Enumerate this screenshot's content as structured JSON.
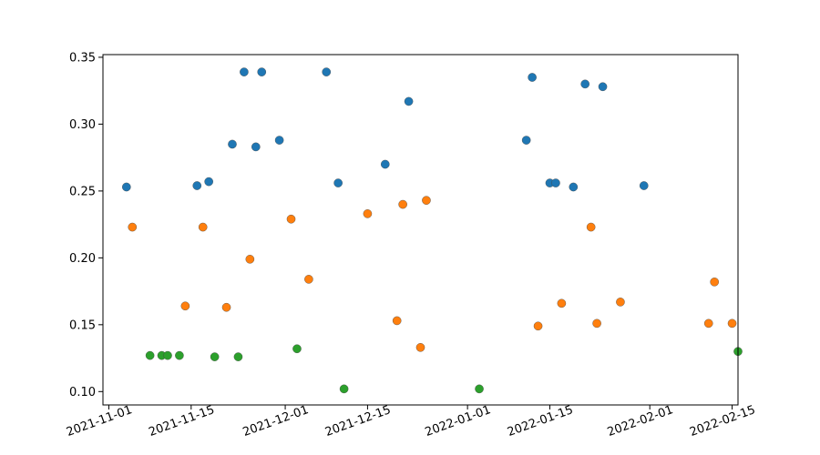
{
  "chart_data": {
    "type": "scatter",
    "title": "",
    "xlabel": "",
    "ylabel": "",
    "x_axis": "date",
    "xlim": [
      "2021-10-31",
      "2022-02-16"
    ],
    "ylim": [
      0.09,
      0.352
    ],
    "grid": false,
    "legend": "none",
    "x_ticks": [
      "2021-11-01",
      "2021-11-15",
      "2021-12-01",
      "2021-12-15",
      "2022-01-01",
      "2022-01-15",
      "2022-02-01",
      "2022-02-15"
    ],
    "y_ticks": [
      0.1,
      0.15,
      0.2,
      0.25,
      0.3,
      0.35
    ],
    "y_tick_labels": [
      "0.10",
      "0.15",
      "0.20",
      "0.25",
      "0.30",
      "0.35"
    ],
    "series": [
      {
        "color": "#1f77b4",
        "points": [
          {
            "x": "2021-11-04",
            "y": 0.253
          },
          {
            "x": "2021-11-16",
            "y": 0.254
          },
          {
            "x": "2021-11-18",
            "y": 0.257
          },
          {
            "x": "2021-11-22",
            "y": 0.285
          },
          {
            "x": "2021-11-24",
            "y": 0.339
          },
          {
            "x": "2021-11-26",
            "y": 0.283
          },
          {
            "x": "2021-11-27",
            "y": 0.339
          },
          {
            "x": "2021-11-30",
            "y": 0.288
          },
          {
            "x": "2021-12-08",
            "y": 0.339
          },
          {
            "x": "2021-12-10",
            "y": 0.256
          },
          {
            "x": "2021-12-18",
            "y": 0.27
          },
          {
            "x": "2021-12-22",
            "y": 0.317
          },
          {
            "x": "2022-01-11",
            "y": 0.288
          },
          {
            "x": "2022-01-12",
            "y": 0.335
          },
          {
            "x": "2022-01-15",
            "y": 0.256
          },
          {
            "x": "2022-01-16",
            "y": 0.256
          },
          {
            "x": "2022-01-19",
            "y": 0.253
          },
          {
            "x": "2022-01-21",
            "y": 0.33
          },
          {
            "x": "2022-01-24",
            "y": 0.328
          },
          {
            "x": "2022-01-31",
            "y": 0.254
          }
        ]
      },
      {
        "color": "#ff7f0e",
        "points": [
          {
            "x": "2021-11-05",
            "y": 0.223
          },
          {
            "x": "2021-11-14",
            "y": 0.164
          },
          {
            "x": "2021-11-17",
            "y": 0.223
          },
          {
            "x": "2021-11-21",
            "y": 0.163
          },
          {
            "x": "2021-11-25",
            "y": 0.199
          },
          {
            "x": "2021-12-02",
            "y": 0.229
          },
          {
            "x": "2021-12-05",
            "y": 0.184
          },
          {
            "x": "2021-12-15",
            "y": 0.233
          },
          {
            "x": "2021-12-20",
            "y": 0.153
          },
          {
            "x": "2021-12-21",
            "y": 0.24
          },
          {
            "x": "2021-12-24",
            "y": 0.133
          },
          {
            "x": "2021-12-25",
            "y": 0.243
          },
          {
            "x": "2022-01-13",
            "y": 0.149
          },
          {
            "x": "2022-01-17",
            "y": 0.166
          },
          {
            "x": "2022-01-22",
            "y": 0.223
          },
          {
            "x": "2022-01-23",
            "y": 0.151
          },
          {
            "x": "2022-01-27",
            "y": 0.167
          },
          {
            "x": "2022-02-11",
            "y": 0.151
          },
          {
            "x": "2022-02-12",
            "y": 0.182
          },
          {
            "x": "2022-02-15",
            "y": 0.151
          }
        ]
      },
      {
        "color": "#2ca02c",
        "points": [
          {
            "x": "2021-11-08",
            "y": 0.127
          },
          {
            "x": "2021-11-10",
            "y": 0.127
          },
          {
            "x": "2021-11-11",
            "y": 0.127
          },
          {
            "x": "2021-11-13",
            "y": 0.127
          },
          {
            "x": "2021-11-19",
            "y": 0.126
          },
          {
            "x": "2021-11-23",
            "y": 0.126
          },
          {
            "x": "2021-12-03",
            "y": 0.132
          },
          {
            "x": "2021-12-11",
            "y": 0.102
          },
          {
            "x": "2022-01-03",
            "y": 0.102
          },
          {
            "x": "2022-02-16",
            "y": 0.13
          }
        ]
      }
    ]
  }
}
